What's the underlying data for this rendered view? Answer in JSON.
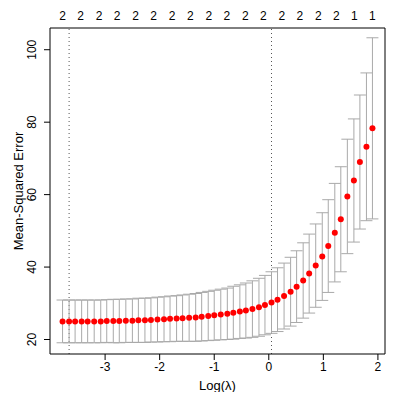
{
  "chart_data": {
    "type": "scatter",
    "x_label": "Log(λ)",
    "y_label": "Mean-Squared Error",
    "color": "#ff0000",
    "marker": "circle",
    "x": [
      -3.78,
      -3.66,
      -3.55,
      -3.43,
      -3.32,
      -3.2,
      -3.08,
      -2.97,
      -2.85,
      -2.74,
      -2.62,
      -2.5,
      -2.39,
      -2.27,
      -2.16,
      -2.04,
      -1.92,
      -1.81,
      -1.69,
      -1.58,
      -1.46,
      -1.34,
      -1.23,
      -1.11,
      -1.0,
      -0.88,
      -0.76,
      -0.65,
      -0.53,
      -0.42,
      -0.3,
      -0.18,
      -0.07,
      0.05,
      0.16,
      0.28,
      0.4,
      0.51,
      0.63,
      0.74,
      0.86,
      0.98,
      1.09,
      1.21,
      1.32,
      1.44,
      1.56,
      1.67,
      1.79,
      1.9
    ],
    "values": [
      25.0,
      25.0,
      25.0,
      25.0,
      25.0,
      25.0,
      25.0,
      25.1,
      25.1,
      25.1,
      25.2,
      25.2,
      25.3,
      25.3,
      25.4,
      25.5,
      25.6,
      25.7,
      25.8,
      25.9,
      26.0,
      26.1,
      26.3,
      26.5,
      26.7,
      26.9,
      27.1,
      27.4,
      27.7,
      28.0,
      28.4,
      28.9,
      29.5,
      30.2,
      31.0,
      32.0,
      33.2,
      34.6,
      36.3,
      38.2,
      40.4,
      42.9,
      45.8,
      49.5,
      53.2,
      59.5,
      63.9,
      69.0,
      73.2,
      78.3
    ],
    "error": [
      5.9,
      5.9,
      5.9,
      5.9,
      5.9,
      5.9,
      5.9,
      5.9,
      6.0,
      6.0,
      6.0,
      6.0,
      6.1,
      6.1,
      6.1,
      6.2,
      6.2,
      6.3,
      6.3,
      6.4,
      6.5,
      6.6,
      6.7,
      6.8,
      6.9,
      7.0,
      7.1,
      7.3,
      7.4,
      7.6,
      7.8,
      8.0,
      8.2,
      8.5,
      8.8,
      9.1,
      9.5,
      9.9,
      10.4,
      10.9,
      11.5,
      12.1,
      12.8,
      13.6,
      14.5,
      15.8,
      17.0,
      18.5,
      20.4,
      25.0
    ],
    "xlim": [
      -4.01,
      2.13
    ],
    "xticks": [
      -3,
      -2,
      -1,
      0,
      1,
      2
    ],
    "ylim": [
      16,
      106
    ],
    "yticks": [
      20,
      40,
      60,
      80,
      100
    ],
    "top_ticks": [
      {
        "value": -3.78,
        "label": "2"
      },
      {
        "value": -3.45,
        "label": "2"
      },
      {
        "value": -3.11,
        "label": "2"
      },
      {
        "value": -2.78,
        "label": "2"
      },
      {
        "value": -2.44,
        "label": "2"
      },
      {
        "value": -2.11,
        "label": "2"
      },
      {
        "value": -1.77,
        "label": "2"
      },
      {
        "value": -1.44,
        "label": "2"
      },
      {
        "value": -1.1,
        "label": "2"
      },
      {
        "value": -0.77,
        "label": "2"
      },
      {
        "value": -0.43,
        "label": "2"
      },
      {
        "value": -0.1,
        "label": "2"
      },
      {
        "value": 0.24,
        "label": "2"
      },
      {
        "value": 0.57,
        "label": "2"
      },
      {
        "value": 0.91,
        "label": "2"
      },
      {
        "value": 1.24,
        "label": "2"
      },
      {
        "value": 1.57,
        "label": "1"
      },
      {
        "value": 1.9,
        "label": "1"
      }
    ],
    "vlines": [
      -3.66,
      0.05
    ]
  }
}
